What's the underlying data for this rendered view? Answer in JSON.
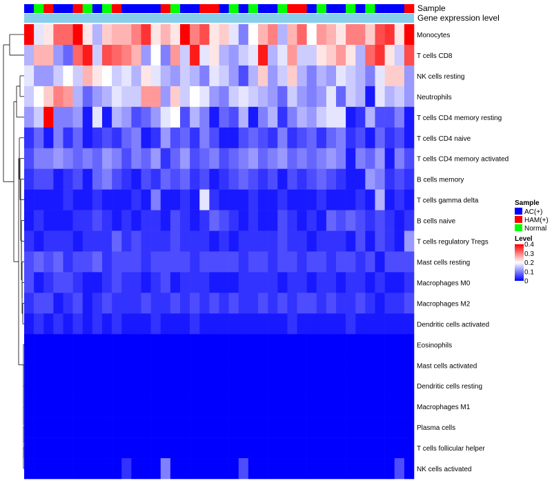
{
  "chart_data": {
    "type": "heatmap",
    "annotation_labels": {
      "sample": "Sample",
      "gene_expression": "Gene expression level"
    },
    "sample_groups": [
      "AC",
      "Normal",
      "HAM",
      "AC",
      "AC",
      "HAM",
      "Normal",
      "AC",
      "Normal",
      "HAM",
      "AC",
      "AC",
      "AC",
      "AC",
      "HAM",
      "Normal",
      "AC",
      "AC",
      "HAM",
      "HAM",
      "AC",
      "Normal",
      "AC",
      "Normal",
      "AC",
      "AC",
      "Normal",
      "HAM",
      "HAM",
      "AC",
      "Normal",
      "AC",
      "AC",
      "Normal",
      "AC",
      "Normal",
      "AC",
      "AC",
      "AC",
      "HAM"
    ],
    "group_colors": {
      "AC": "#0000ff",
      "HAM": "#ff0000",
      "Normal": "#00ff00"
    },
    "gene_expression_color": "#87ceeb",
    "rows": [
      {
        "label": "Monocytes",
        "values": [
          0.4,
          0.18,
          0.22,
          0.32,
          0.32,
          0.4,
          0.22,
          0.14,
          0.24,
          0.26,
          0.26,
          0.3,
          0.36,
          0.22,
          0.26,
          0.22,
          0.4,
          0.3,
          0.34,
          0.22,
          0.24,
          0.18,
          0.1,
          0.2,
          0.26,
          0.3,
          0.14,
          0.26,
          0.32,
          0.2,
          0.28,
          0.26,
          0.22,
          0.3,
          0.3,
          0.24,
          0.34,
          0.36,
          0.22,
          0.4
        ]
      },
      {
        "label": "T cells CD8",
        "values": [
          0.14,
          0.26,
          0.26,
          0.12,
          0.08,
          0.32,
          0.38,
          0.16,
          0.34,
          0.32,
          0.3,
          0.26,
          0.12,
          0.2,
          0.1,
          0.28,
          0.16,
          0.38,
          0.18,
          0.22,
          0.14,
          0.12,
          0.16,
          0.18,
          0.38,
          0.14,
          0.18,
          0.28,
          0.16,
          0.16,
          0.22,
          0.24,
          0.28,
          0.22,
          0.14,
          0.32,
          0.36,
          0.22,
          0.16,
          0.34
        ]
      },
      {
        "label": "NK cells resting",
        "values": [
          0.18,
          0.12,
          0.12,
          0.16,
          0.2,
          0.16,
          0.26,
          0.22,
          0.2,
          0.16,
          0.18,
          0.14,
          0.22,
          0.18,
          0.14,
          0.12,
          0.16,
          0.14,
          0.1,
          0.18,
          0.16,
          0.12,
          0.06,
          0.14,
          0.24,
          0.12,
          0.16,
          0.24,
          0.14,
          0.1,
          0.14,
          0.12,
          0.18,
          0.16,
          0.14,
          0.1,
          0.18,
          0.24,
          0.24,
          0.12
        ]
      },
      {
        "label": "Neutrophils",
        "values": [
          0.16,
          0.2,
          0.24,
          0.3,
          0.28,
          0.14,
          0.08,
          0.12,
          0.14,
          0.18,
          0.16,
          0.16,
          0.28,
          0.28,
          0.12,
          0.24,
          0.16,
          0.2,
          0.18,
          0.12,
          0.1,
          0.16,
          0.18,
          0.16,
          0.14,
          0.12,
          0.08,
          0.16,
          0.12,
          0.1,
          0.12,
          0.18,
          0.08,
          0.16,
          0.14,
          0.02,
          0.18,
          0.14,
          0.16,
          0.12
        ]
      },
      {
        "label": "T cells CD4 memory resting",
        "values": [
          0.12,
          0.16,
          0.4,
          0.1,
          0.1,
          0.12,
          0.02,
          0.18,
          0.02,
          0.14,
          0.12,
          0.06,
          0.08,
          0.12,
          0.18,
          0.2,
          0.06,
          0.14,
          0.1,
          0.02,
          0.08,
          0.06,
          0.14,
          0.02,
          0.1,
          0.14,
          0.04,
          0.1,
          0.14,
          0.12,
          0.16,
          0.18,
          0.18,
          0.02,
          0.04,
          0.14,
          0.06,
          0.06,
          0.1,
          0.02
        ]
      },
      {
        "label": "T cells CD4 naive",
        "values": [
          0.04,
          0.08,
          0.02,
          0.1,
          0.04,
          0.08,
          0.02,
          0.04,
          0.06,
          0.04,
          0.08,
          0.1,
          0.02,
          0.04,
          0.12,
          0.06,
          0.08,
          0.04,
          0.1,
          0.06,
          0.02,
          0.02,
          0.06,
          0.08,
          0.06,
          0.04,
          0.1,
          0.04,
          0.06,
          0.08,
          0.04,
          0.08,
          0.1,
          0.04,
          0.06,
          0.02,
          0.08,
          0.04,
          0.06,
          0.02
        ]
      },
      {
        "label": "T cells CD4 memory activated",
        "values": [
          0.06,
          0.1,
          0.1,
          0.12,
          0.1,
          0.08,
          0.1,
          0.08,
          0.12,
          0.1,
          0.06,
          0.1,
          0.08,
          0.12,
          0.04,
          0.08,
          0.12,
          0.06,
          0.08,
          0.1,
          0.06,
          0.08,
          0.1,
          0.12,
          0.08,
          0.1,
          0.12,
          0.08,
          0.1,
          0.08,
          0.1,
          0.12,
          0.1,
          0.02,
          0.1,
          0.08,
          0.12,
          0.02,
          0.1,
          0.06
        ]
      },
      {
        "label": "B cells memory",
        "values": [
          0.04,
          0.06,
          0.06,
          0.02,
          0.04,
          0.06,
          0.02,
          0.08,
          0.1,
          0.06,
          0.04,
          0.02,
          0.06,
          0.04,
          0.08,
          0.06,
          0.08,
          0.04,
          0.06,
          0.02,
          0.04,
          0.06,
          0.08,
          0.06,
          0.04,
          0.06,
          0.02,
          0.06,
          0.04,
          0.06,
          0.08,
          0.06,
          0.04,
          0.02,
          0.02,
          0.12,
          0.1,
          0.04,
          0.06,
          0.04
        ]
      },
      {
        "label": "T cells gamma delta",
        "values": [
          0.02,
          0.02,
          0.02,
          0.02,
          0.04,
          0.02,
          0.02,
          0.04,
          0.02,
          0.02,
          0.02,
          0.04,
          0.02,
          0.1,
          0.02,
          0.02,
          0.04,
          0.02,
          0.18,
          0.04,
          0.02,
          0.02,
          0.02,
          0.04,
          0.02,
          0.02,
          0.04,
          0.02,
          0.02,
          0.02,
          0.04,
          0.02,
          0.02,
          0.02,
          0.04,
          0.02,
          0.14,
          0.02,
          0.04,
          0.02
        ]
      },
      {
        "label": "B cells naive",
        "values": [
          0.02,
          0.04,
          0.02,
          0.02,
          0.02,
          0.04,
          0.04,
          0.06,
          0.04,
          0.02,
          0.04,
          0.02,
          0.04,
          0.04,
          0.02,
          0.06,
          0.04,
          0.02,
          0.04,
          0.08,
          0.06,
          0.04,
          0.02,
          0.04,
          0.02,
          0.02,
          0.06,
          0.04,
          0.02,
          0.04,
          0.02,
          0.08,
          0.06,
          0.08,
          0.06,
          0.04,
          0.06,
          0.04,
          0.02,
          0.04
        ]
      },
      {
        "label": "T cells regulatory  Tregs",
        "values": [
          0.04,
          0.02,
          0.04,
          0.04,
          0.04,
          0.02,
          0.04,
          0.04,
          0.04,
          0.08,
          0.04,
          0.06,
          0.04,
          0.04,
          0.04,
          0.06,
          0.04,
          0.04,
          0.04,
          0.02,
          0.04,
          0.02,
          0.04,
          0.04,
          0.04,
          0.04,
          0.06,
          0.04,
          0.04,
          0.02,
          0.04,
          0.04,
          0.04,
          0.02,
          0.06,
          0.02,
          0.06,
          0.04,
          0.02,
          0.12
        ]
      },
      {
        "label": "Mast cells resting",
        "values": [
          0.06,
          0.08,
          0.06,
          0.08,
          0.04,
          0.06,
          0.06,
          0.08,
          0.04,
          0.06,
          0.06,
          0.06,
          0.04,
          0.06,
          0.06,
          0.06,
          0.06,
          0.04,
          0.06,
          0.06,
          0.06,
          0.06,
          0.04,
          0.06,
          0.06,
          0.04,
          0.06,
          0.06,
          0.04,
          0.06,
          0.06,
          0.04,
          0.06,
          0.06,
          0.04,
          0.06,
          0.02,
          0.06,
          0.06,
          0.06
        ]
      },
      {
        "label": "Macrophages M0",
        "values": [
          0.06,
          0.02,
          0.04,
          0.06,
          0.06,
          0.04,
          0.02,
          0.02,
          0.04,
          0.06,
          0.04,
          0.04,
          0.02,
          0.04,
          0.06,
          0.02,
          0.04,
          0.04,
          0.04,
          0.02,
          0.02,
          0.02,
          0.04,
          0.04,
          0.04,
          0.04,
          0.02,
          0.04,
          0.04,
          0.02,
          0.04,
          0.04,
          0.02,
          0.04,
          0.04,
          0.02,
          0.04,
          0.02,
          0.02,
          0.04
        ]
      },
      {
        "label": "Macrophages M2",
        "values": [
          0.04,
          0.06,
          0.06,
          0.02,
          0.04,
          0.06,
          0.02,
          0.04,
          0.06,
          0.04,
          0.04,
          0.04,
          0.06,
          0.04,
          0.04,
          0.06,
          0.04,
          0.06,
          0.04,
          0.06,
          0.04,
          0.06,
          0.04,
          0.04,
          0.06,
          0.04,
          0.06,
          0.04,
          0.06,
          0.06,
          0.04,
          0.06,
          0.04,
          0.04,
          0.06,
          0.04,
          0.02,
          0.04,
          0.04,
          0.06
        ]
      },
      {
        "label": "Dendritic cells activated",
        "values": [
          0.02,
          0.04,
          0.02,
          0.04,
          0.02,
          0.04,
          0.02,
          0.04,
          0.02,
          0.04,
          0.02,
          0.02,
          0.02,
          0.04,
          0.02,
          0.02,
          0.02,
          0.04,
          0.02,
          0.02,
          0.02,
          0.02,
          0.02,
          0.02,
          0.02,
          0.02,
          0.02,
          0.04,
          0.02,
          0.02,
          0.02,
          0.02,
          0.02,
          0.04,
          0.02,
          0.02,
          0.02,
          0.02,
          0.02,
          0.02
        ]
      },
      {
        "label": "Eosinophils",
        "values": [
          0,
          0,
          0,
          0,
          0,
          0,
          0,
          0,
          0,
          0,
          0,
          0,
          0,
          0,
          0,
          0,
          0,
          0,
          0,
          0,
          0,
          0,
          0,
          0,
          0,
          0,
          0,
          0,
          0,
          0,
          0,
          0,
          0,
          0,
          0,
          0,
          0,
          0,
          0,
          0
        ]
      },
      {
        "label": "Mast cells activated",
        "values": [
          0,
          0,
          0,
          0,
          0,
          0,
          0,
          0,
          0,
          0,
          0,
          0,
          0,
          0,
          0,
          0,
          0,
          0,
          0,
          0,
          0,
          0,
          0,
          0,
          0,
          0,
          0,
          0,
          0,
          0,
          0,
          0,
          0,
          0,
          0,
          0,
          0,
          0,
          0,
          0
        ]
      },
      {
        "label": "Dendritic cells resting",
        "values": [
          0,
          0,
          0,
          0,
          0,
          0,
          0,
          0,
          0,
          0,
          0,
          0,
          0,
          0,
          0,
          0,
          0,
          0,
          0,
          0,
          0,
          0,
          0,
          0,
          0,
          0,
          0,
          0,
          0,
          0,
          0,
          0,
          0,
          0,
          0,
          0,
          0,
          0,
          0,
          0
        ]
      },
      {
        "label": "Macrophages M1",
        "values": [
          0,
          0,
          0,
          0,
          0,
          0,
          0,
          0,
          0,
          0,
          0,
          0,
          0,
          0,
          0,
          0,
          0,
          0,
          0,
          0,
          0,
          0,
          0,
          0,
          0,
          0,
          0,
          0,
          0,
          0,
          0,
          0,
          0,
          0,
          0,
          0,
          0,
          0,
          0,
          0
        ]
      },
      {
        "label": "Plasma cells",
        "values": [
          0,
          0,
          0,
          0,
          0,
          0,
          0,
          0,
          0,
          0,
          0,
          0,
          0,
          0,
          0,
          0,
          0,
          0,
          0,
          0,
          0,
          0,
          0,
          0,
          0,
          0,
          0,
          0,
          0,
          0,
          0,
          0,
          0,
          0,
          0,
          0,
          0,
          0,
          0,
          0
        ]
      },
      {
        "label": "T cells follicular helper",
        "values": [
          0,
          0,
          0,
          0,
          0,
          0,
          0,
          0,
          0,
          0,
          0,
          0,
          0,
          0,
          0,
          0,
          0,
          0,
          0,
          0,
          0,
          0,
          0,
          0,
          0,
          0,
          0,
          0,
          0,
          0,
          0,
          0,
          0,
          0,
          0,
          0,
          0,
          0,
          0,
          0
        ]
      },
      {
        "label": "NK cells activated",
        "values": [
          0,
          0,
          0,
          0,
          0,
          0,
          0,
          0,
          0,
          0,
          0.04,
          0,
          0,
          0,
          0.1,
          0,
          0,
          0,
          0,
          0,
          0,
          0,
          0.06,
          0,
          0,
          0,
          0,
          0,
          0,
          0,
          0,
          0,
          0,
          0,
          0,
          0,
          0,
          0,
          0.06,
          0
        ]
      }
    ],
    "legend": {
      "sample_title": "Sample",
      "sample_entries": [
        {
          "label": "AC(+)",
          "color": "#0000ff"
        },
        {
          "label": "HAM(+)",
          "color": "#ff0000"
        },
        {
          "label": "Normal",
          "color": "#00ff00"
        }
      ],
      "level_title": "Level",
      "level_ticks": [
        "0.4",
        "0.3",
        "0.2",
        "0.1",
        "0"
      ],
      "level_range": [
        0,
        0.4
      ],
      "colors": {
        "low": "#0000ff",
        "mid": "#ffffff",
        "high": "#ff0000"
      }
    },
    "dendrogram": "row"
  }
}
